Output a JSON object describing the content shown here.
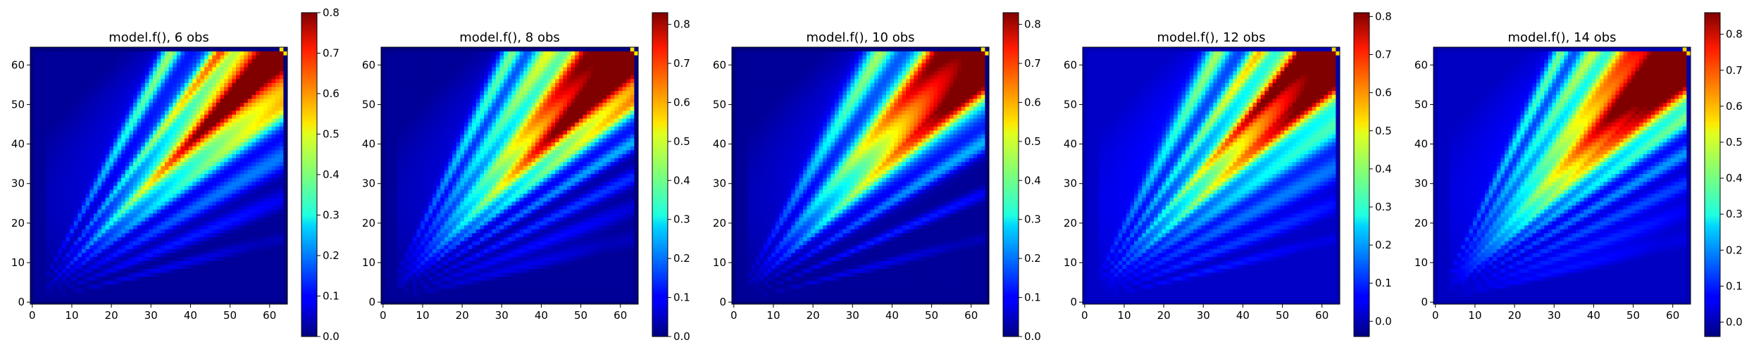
{
  "figure": {
    "panels": [
      {
        "title": "model.f(), 6 obs",
        "seed": 6,
        "color_min": 0.0,
        "color_max": 0.8,
        "colorbar_ticks": [
          "0.0",
          "0.1",
          "0.2",
          "0.3",
          "0.4",
          "0.5",
          "0.6",
          "0.7",
          "0.8"
        ],
        "colorbar_tick_values": [
          0.0,
          0.1,
          0.2,
          0.3,
          0.4,
          0.5,
          0.6,
          0.7,
          0.8
        ]
      },
      {
        "title": "model.f(), 8 obs",
        "seed": 8,
        "color_min": 0.0,
        "color_max": 0.83,
        "colorbar_ticks": [
          "0.0",
          "0.1",
          "0.2",
          "0.3",
          "0.4",
          "0.5",
          "0.6",
          "0.7",
          "0.8"
        ],
        "colorbar_tick_values": [
          0.0,
          0.1,
          0.2,
          0.3,
          0.4,
          0.5,
          0.6,
          0.7,
          0.8
        ]
      },
      {
        "title": "model.f(), 10 obs",
        "seed": 10,
        "color_min": 0.0,
        "color_max": 0.83,
        "colorbar_ticks": [
          "0.0",
          "0.1",
          "0.2",
          "0.3",
          "0.4",
          "0.5",
          "0.6",
          "0.7",
          "0.8"
        ],
        "colorbar_tick_values": [
          0.0,
          0.1,
          0.2,
          0.3,
          0.4,
          0.5,
          0.6,
          0.7,
          0.8
        ]
      },
      {
        "title": "model.f(), 12 obs",
        "seed": 12,
        "color_min": -0.04,
        "color_max": 0.81,
        "colorbar_ticks": [
          "0.0",
          "0.1",
          "0.2",
          "0.3",
          "0.4",
          "0.5",
          "0.6",
          "0.7",
          "0.8"
        ],
        "colorbar_tick_values": [
          0.0,
          0.1,
          0.2,
          0.3,
          0.4,
          0.5,
          0.6,
          0.7,
          0.8
        ]
      },
      {
        "title": "model.f(), 14 obs",
        "seed": 14,
        "color_min": -0.04,
        "color_max": 0.86,
        "colorbar_ticks": [
          "0.0",
          "0.1",
          "0.2",
          "0.3",
          "0.4",
          "0.5",
          "0.6",
          "0.7",
          "0.8"
        ],
        "colorbar_tick_values": [
          0.0,
          0.1,
          0.2,
          0.3,
          0.4,
          0.5,
          0.6,
          0.7,
          0.8
        ]
      }
    ],
    "x_ticks": [
      "0",
      "10",
      "20",
      "30",
      "40",
      "50",
      "60"
    ],
    "y_ticks": [
      "0",
      "10",
      "20",
      "30",
      "40",
      "50",
      "60"
    ],
    "colormap": "jet"
  },
  "chart_data": [
    {
      "type": "heatmap",
      "title": "model.f(), 6 obs",
      "xlim": [
        -0.5,
        64.5
      ],
      "ylim": [
        -0.5,
        64.5
      ],
      "grid_size": [
        65,
        65
      ],
      "colormap": "jet",
      "color_range": [
        0.0,
        0.8
      ],
      "x_ticks": [
        0,
        10,
        20,
        30,
        40,
        50,
        60
      ],
      "y_ticks": [
        0,
        10,
        20,
        30,
        40,
        50,
        60
      ],
      "description_values": {
        "peak": 0.8,
        "peak_region": "upper-right near (55, 60)",
        "low_region": "lower-right triangle and left edge ~0.05"
      }
    },
    {
      "type": "heatmap",
      "title": "model.f(), 8 obs",
      "xlim": [
        -0.5,
        64.5
      ],
      "ylim": [
        -0.5,
        64.5
      ],
      "grid_size": [
        65,
        65
      ],
      "colormap": "jet",
      "color_range": [
        0.0,
        0.83
      ],
      "x_ticks": [
        0,
        10,
        20,
        30,
        40,
        50,
        60
      ],
      "y_ticks": [
        0,
        10,
        20,
        30,
        40,
        50,
        60
      ],
      "description_values": {
        "peak": 0.83,
        "peak_region": "upper-right near (58, 62)",
        "low_region": "lower-right triangle and left edge ~0.05"
      }
    },
    {
      "type": "heatmap",
      "title": "model.f(), 10 obs",
      "xlim": [
        -0.5,
        64.5
      ],
      "ylim": [
        -0.5,
        64.5
      ],
      "grid_size": [
        65,
        65
      ],
      "colormap": "jet",
      "color_range": [
        0.0,
        0.83
      ],
      "x_ticks": [
        0,
        10,
        20,
        30,
        40,
        50,
        60
      ],
      "y_ticks": [
        0,
        10,
        20,
        30,
        40,
        50,
        60
      ],
      "description_values": {
        "peak": 0.83,
        "peak_region": "upper-right near (55, 60)",
        "low_region": "lower-right triangle and left edge ~0.05"
      }
    },
    {
      "type": "heatmap",
      "title": "model.f(), 12 obs",
      "xlim": [
        -0.5,
        64.5
      ],
      "ylim": [
        -0.5,
        64.5
      ],
      "grid_size": [
        65,
        65
      ],
      "colormap": "jet",
      "color_range": [
        -0.04,
        0.81
      ],
      "x_ticks": [
        0,
        10,
        20,
        30,
        40,
        50,
        60
      ],
      "y_ticks": [
        0,
        10,
        20,
        30,
        40,
        50,
        60
      ],
      "description_values": {
        "peak": 0.81,
        "peak_region": "upper-right near (55, 60)",
        "low_region": "lower-right triangle and left edge ~0.0"
      }
    },
    {
      "type": "heatmap",
      "title": "model.f(), 14 obs",
      "xlim": [
        -0.5,
        64.5
      ],
      "ylim": [
        -0.5,
        64.5
      ],
      "grid_size": [
        65,
        65
      ],
      "colormap": "jet",
      "color_range": [
        -0.04,
        0.86
      ],
      "x_ticks": [
        0,
        10,
        20,
        30,
        40,
        50,
        60
      ],
      "y_ticks": [
        0,
        10,
        20,
        30,
        40,
        50,
        60
      ],
      "description_values": {
        "peak": 0.86,
        "peak_region": "upper-right near (50, 60)",
        "low_region": "lower-right triangle and left edge ~0.0"
      }
    }
  ]
}
